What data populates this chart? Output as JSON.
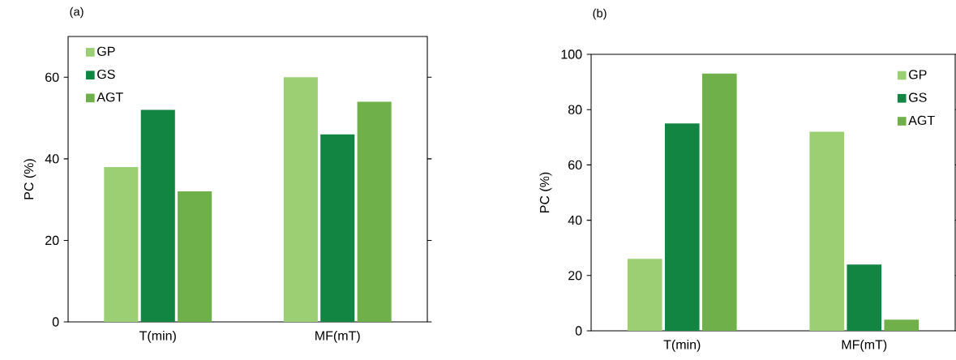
{
  "chart_data": [
    {
      "type": "bar",
      "title": "(a)",
      "ylabel": "PC (%)",
      "categories": [
        "T(min)",
        "MF(mT)"
      ],
      "ylim": [
        0,
        70
      ],
      "yticks": [
        0,
        20,
        40,
        60
      ],
      "legend": "top left",
      "series": [
        {
          "name": "GP",
          "color": "#9ccf74",
          "values": [
            38,
            60
          ]
        },
        {
          "name": "GS",
          "color": "#138542",
          "values": [
            52,
            46
          ]
        },
        {
          "name": "AGT",
          "color": "#6fb04a",
          "values": [
            32,
            54
          ]
        }
      ]
    },
    {
      "type": "bar",
      "title": "(b)",
      "ylabel": "PC (%)",
      "categories": [
        "T(min)",
        "MF(mT)"
      ],
      "ylim": [
        0,
        100
      ],
      "yticks": [
        0,
        20,
        40,
        60,
        80,
        100
      ],
      "legend": "top right",
      "series": [
        {
          "name": "GP",
          "color": "#9ccf74",
          "values": [
            26,
            72
          ]
        },
        {
          "name": "GS",
          "color": "#138542",
          "values": [
            75,
            24
          ]
        },
        {
          "name": "AGT",
          "color": "#6fb04a",
          "values": [
            93,
            4
          ]
        }
      ]
    }
  ]
}
